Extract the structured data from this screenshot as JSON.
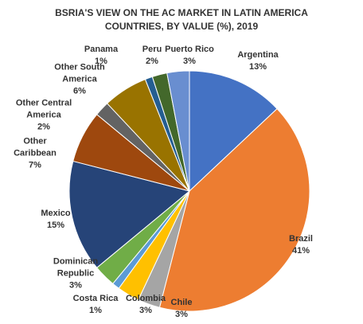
{
  "chart_data": {
    "type": "pie",
    "title": "BSRIA'S VIEW ON THE AC MARKET IN LATIN AMERICA COUNTRIES, BY VALUE (%), 2019",
    "categories": [
      "Argentina",
      "Brazil",
      "Chile",
      "Colombia",
      "Costa Rica",
      "Dominican Republic",
      "Mexico",
      "Other Caribbean",
      "Other Central America",
      "Other South America",
      "Panama",
      "Peru",
      "Puerto Rico"
    ],
    "values": [
      13,
      41,
      3,
      3,
      1,
      3,
      15,
      7,
      2,
      6,
      1,
      2,
      3
    ],
    "value_labels": [
      "13%",
      "41%",
      "3%",
      "3%",
      "1%",
      "3%",
      "15%",
      "7%",
      "2%",
      "6%",
      "1%",
      "2%",
      "3%"
    ],
    "colors": [
      "#4472c4",
      "#ed7d31",
      "#a5a5a5",
      "#ffc000",
      "#5b9bd5",
      "#70ad47",
      "#264478",
      "#9e480e",
      "#636363",
      "#997300",
      "#255e91",
      "#43682b",
      "#698ed0"
    ]
  }
}
